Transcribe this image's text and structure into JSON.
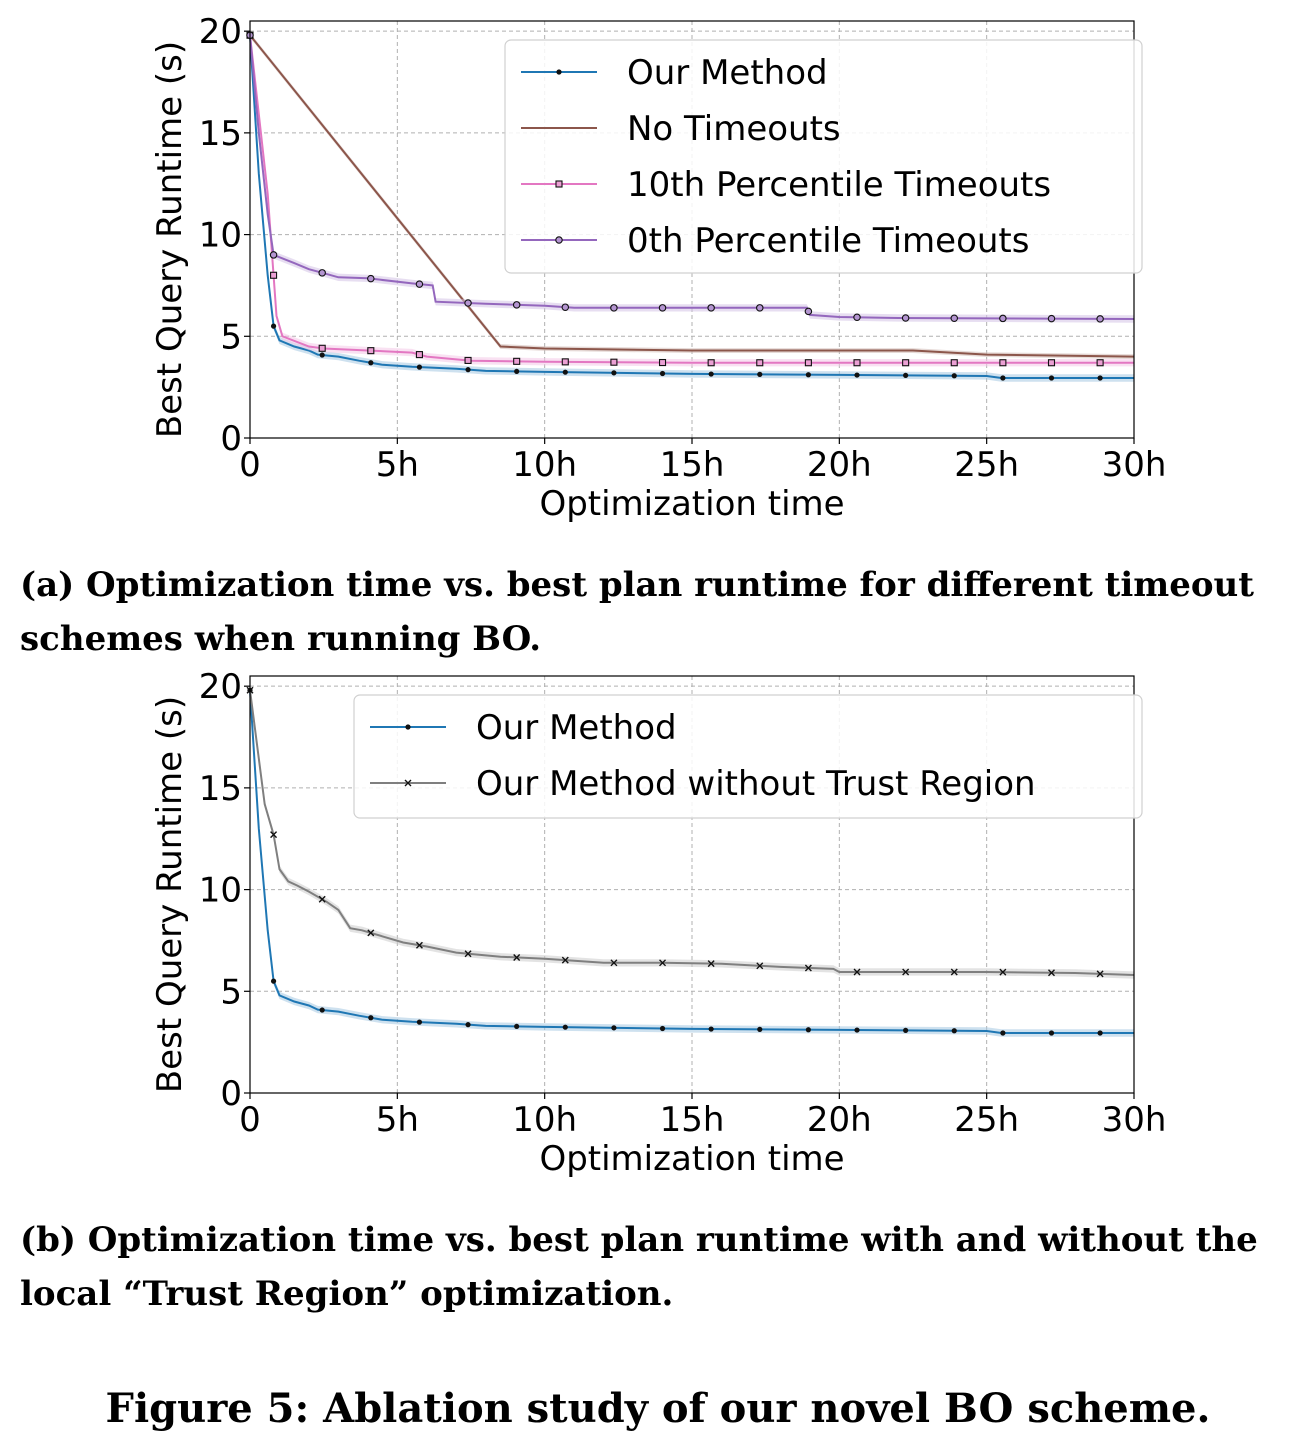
{
  "figure_caption": "Figure 5: Ablation study of our novel BO scheme.",
  "captions": [
    "(a) Optimization time vs. best plan runtime for different timeout schemes when running BO.",
    "(b) Optimization time vs. best plan runtime with and without the local “Trust Region” optimization."
  ],
  "chart_data": [
    {
      "type": "line",
      "xlabel": "Optimization time",
      "ylabel": "Best Query Runtime (s)",
      "xlim": [
        0,
        30
      ],
      "ylim": [
        0,
        20.5
      ],
      "xticks": [
        0,
        5,
        10,
        15,
        20,
        25,
        30
      ],
      "xtick_labels": [
        "0",
        "5h",
        "10h",
        "15h",
        "20h",
        "25h",
        "30h"
      ],
      "yticks": [
        0,
        5,
        10,
        15,
        20
      ],
      "ytick_labels": [
        "0",
        "5",
        "10",
        "15",
        "20"
      ],
      "grid": true,
      "legend_position": "top-right",
      "series": [
        {
          "name": "Our Method",
          "color": "#1f77b4",
          "marker": "dot",
          "x": [
            0,
            0.3,
            0.6,
            0.8,
            1.0,
            1.5,
            2.0,
            2.3,
            3.0,
            3.7,
            4.5,
            5.5,
            7.0,
            8.0,
            10.0,
            15.0,
            20.0,
            25.0,
            25.5,
            30.0
          ],
          "y": [
            19.8,
            13.0,
            8.0,
            5.5,
            4.8,
            4.5,
            4.3,
            4.1,
            4.0,
            3.8,
            3.6,
            3.5,
            3.4,
            3.3,
            3.25,
            3.15,
            3.1,
            3.05,
            2.95,
            2.95
          ]
        },
        {
          "name": "No Timeouts",
          "color": "#8c564b",
          "marker": "none",
          "x": [
            0,
            8.5,
            10,
            15,
            20,
            22.5,
            25,
            30
          ],
          "y": [
            19.8,
            4.5,
            4.4,
            4.3,
            4.3,
            4.3,
            4.1,
            4.0
          ]
        },
        {
          "name": "10th Percentile Timeouts",
          "color": "#e377c2",
          "marker": "square",
          "x": [
            0,
            0.6,
            0.9,
            1.1,
            2.0,
            2.5,
            4.0,
            5.5,
            6.0,
            7.5,
            10.0,
            15.0,
            20.0,
            25.0,
            30.0
          ],
          "y": [
            19.8,
            12.0,
            6.0,
            5.0,
            4.5,
            4.4,
            4.3,
            4.2,
            4.0,
            3.8,
            3.75,
            3.7,
            3.7,
            3.7,
            3.7
          ]
        },
        {
          "name": "0th Percentile Timeouts",
          "color": "#9467bd",
          "marker": "circle",
          "x": [
            0,
            0.3,
            0.6,
            0.8,
            1.5,
            2.0,
            2.5,
            3.0,
            4.0,
            5.5,
            6.2,
            6.3,
            8.0,
            10.0,
            11.0,
            18.9,
            19.0,
            20.0,
            22.0,
            30.0
          ],
          "y": [
            19.8,
            15.0,
            11.0,
            9.0,
            8.6,
            8.3,
            8.1,
            7.9,
            7.85,
            7.6,
            7.5,
            6.7,
            6.6,
            6.5,
            6.4,
            6.4,
            6.05,
            5.95,
            5.9,
            5.85
          ]
        }
      ]
    },
    {
      "type": "line",
      "xlabel": "Optimization time",
      "ylabel": "Best Query Runtime (s)",
      "xlim": [
        0,
        30
      ],
      "ylim": [
        0,
        20.5
      ],
      "xticks": [
        0,
        5,
        10,
        15,
        20,
        25,
        30
      ],
      "xtick_labels": [
        "0",
        "5h",
        "10h",
        "15h",
        "20h",
        "25h",
        "30h"
      ],
      "yticks": [
        0,
        5,
        10,
        15,
        20
      ],
      "ytick_labels": [
        "0",
        "5",
        "10",
        "15",
        "20"
      ],
      "grid": true,
      "legend_position": "top-right",
      "series": [
        {
          "name": "Our Method",
          "color": "#1f77b4",
          "marker": "dot",
          "x": [
            0,
            0.3,
            0.6,
            0.8,
            1.0,
            1.5,
            2.0,
            2.3,
            3.0,
            3.7,
            4.5,
            5.5,
            7.0,
            8.0,
            10.0,
            15.0,
            20.0,
            25.0,
            25.5,
            30.0
          ],
          "y": [
            19.8,
            13.0,
            8.0,
            5.5,
            4.8,
            4.5,
            4.3,
            4.1,
            4.0,
            3.8,
            3.6,
            3.5,
            3.4,
            3.3,
            3.25,
            3.15,
            3.1,
            3.05,
            2.95,
            2.95
          ]
        },
        {
          "name": "Our Method without Trust Region",
          "color": "#7f7f7f",
          "marker": "x",
          "x": [
            0,
            0.5,
            0.8,
            1.0,
            1.3,
            1.6,
            2.0,
            2.6,
            3.0,
            3.4,
            3.8,
            4.5,
            5.2,
            6.0,
            7.0,
            8.5,
            10.0,
            12.0,
            14.0,
            16.0,
            18.0,
            19.8,
            20.0,
            25.0,
            28.0,
            30.0
          ],
          "y": [
            19.8,
            14.2,
            12.7,
            11.0,
            10.4,
            10.2,
            9.9,
            9.4,
            9.0,
            8.1,
            8.0,
            7.7,
            7.4,
            7.2,
            6.9,
            6.7,
            6.6,
            6.4,
            6.4,
            6.35,
            6.2,
            6.1,
            5.95,
            5.95,
            5.9,
            5.8
          ]
        }
      ]
    }
  ]
}
